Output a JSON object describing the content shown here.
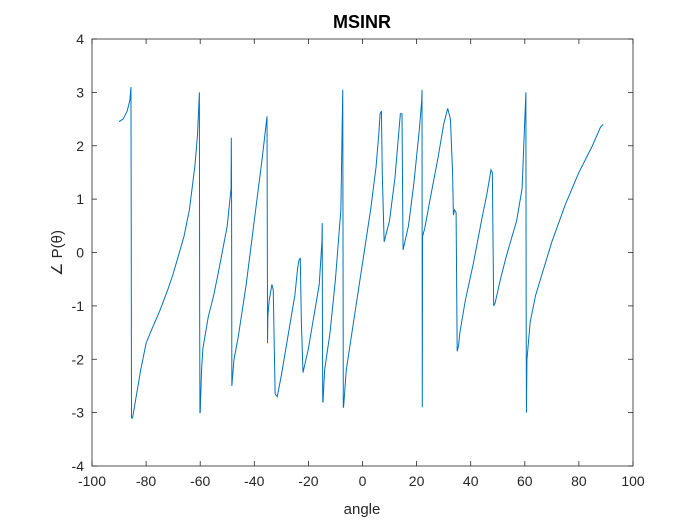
{
  "chart_data": {
    "type": "line",
    "title": "MSINR",
    "xlabel": "angle",
    "ylabel": "∠ P(θ)",
    "xlim": [
      -100,
      100
    ],
    "ylim": [
      -4,
      4
    ],
    "xticks": [
      "-100",
      "-80",
      "-60",
      "-40",
      "-20",
      "0",
      "20",
      "40",
      "60",
      "80",
      "100"
    ],
    "yticks": [
      "4",
      "3",
      "2",
      "1",
      "0",
      "-1",
      "-2",
      "-3",
      "-4"
    ],
    "grid": false,
    "line_color": "#0072BD",
    "series": [
      {
        "x": [
          -90,
          -88.5,
          -87,
          -86,
          -85.6,
          -85.5,
          -85.4,
          -85,
          -84,
          -82,
          -80,
          -78,
          -75,
          -72,
          -70,
          -68,
          -66,
          -64,
          -62,
          -61,
          -60.3,
          -60.2,
          -60.1,
          -60,
          -59.5,
          -59,
          -57,
          -55,
          -53,
          -50,
          -48.6,
          -48.5,
          -48.4,
          -48.3,
          -47.5,
          -46,
          -43,
          -40,
          -37,
          -35.3,
          -35.2,
          -35.1,
          -35,
          -34.5,
          -33.5,
          -33,
          -32.3,
          -31.5,
          -30,
          -27,
          -25,
          -24,
          -23.5,
          -23,
          -22.6,
          -22,
          -20,
          -18,
          -16,
          -15,
          -14.9,
          -14.8,
          -14.7,
          -14.6,
          -14,
          -12,
          -10,
          -8,
          -7.3,
          -7.2,
          -7.1,
          -7,
          -6,
          -3,
          0,
          3,
          5,
          6,
          6.5,
          7,
          7.3,
          8,
          10,
          12,
          13.5,
          14,
          14.6,
          15,
          17,
          19,
          21,
          21.9,
          22,
          22.1,
          22.2,
          23,
          25,
          28,
          30,
          31.5,
          32.5,
          33.3,
          33.6,
          34,
          34.6,
          35,
          35.5,
          36,
          38,
          41,
          44,
          46,
          47.5,
          48,
          48.5,
          49,
          51,
          53,
          55,
          57,
          59,
          60.4,
          60.5,
          60.6,
          60.8,
          62,
          64,
          67,
          70,
          75,
          80,
          85,
          88,
          89
        ],
        "y": [
          2.45,
          2.5,
          2.65,
          2.85,
          3.1,
          0.5,
          -3.1,
          -3.1,
          -2.8,
          -2.2,
          -1.7,
          -1.45,
          -1.1,
          -0.7,
          -0.4,
          -0.05,
          0.3,
          0.8,
          1.6,
          2.2,
          3.0,
          -1.0,
          -3.0,
          -3.0,
          -2.2,
          -1.8,
          -1.2,
          -0.8,
          -0.3,
          0.5,
          1.2,
          2.15,
          1.0,
          -2.5,
          -2.0,
          -1.6,
          -0.6,
          0.6,
          1.8,
          2.55,
          0.5,
          -1.7,
          -1.2,
          -0.9,
          -0.6,
          -0.7,
          -2.65,
          -2.7,
          -2.3,
          -1.4,
          -0.8,
          -0.3,
          -0.15,
          -0.1,
          -1.3,
          -2.25,
          -1.8,
          -1.2,
          -0.6,
          0.2,
          0.55,
          -1.5,
          -2.8,
          -2.8,
          -2.2,
          -1.5,
          -0.5,
          0.8,
          3.05,
          0.2,
          -2.9,
          -2.9,
          -2.2,
          -1.2,
          -0.2,
          0.8,
          1.6,
          2.2,
          2.6,
          2.65,
          1.5,
          0.2,
          0.6,
          1.4,
          2.3,
          2.6,
          2.6,
          0.05,
          0.5,
          1.3,
          2.3,
          2.85,
          3.05,
          -2.9,
          0.3,
          0.45,
          1.0,
          1.8,
          2.4,
          2.7,
          2.5,
          1.5,
          0.7,
          0.8,
          0.75,
          -1.85,
          -1.75,
          -1.5,
          -0.9,
          -0.2,
          0.6,
          1.1,
          1.55,
          1.5,
          -1.0,
          -0.95,
          -0.5,
          -0.1,
          0.25,
          0.6,
          1.2,
          3.0,
          -1.0,
          -3.0,
          -2.0,
          -1.3,
          -0.8,
          -0.3,
          0.2,
          0.9,
          1.5,
          2.0,
          2.35,
          2.4
        ]
      }
    ]
  }
}
